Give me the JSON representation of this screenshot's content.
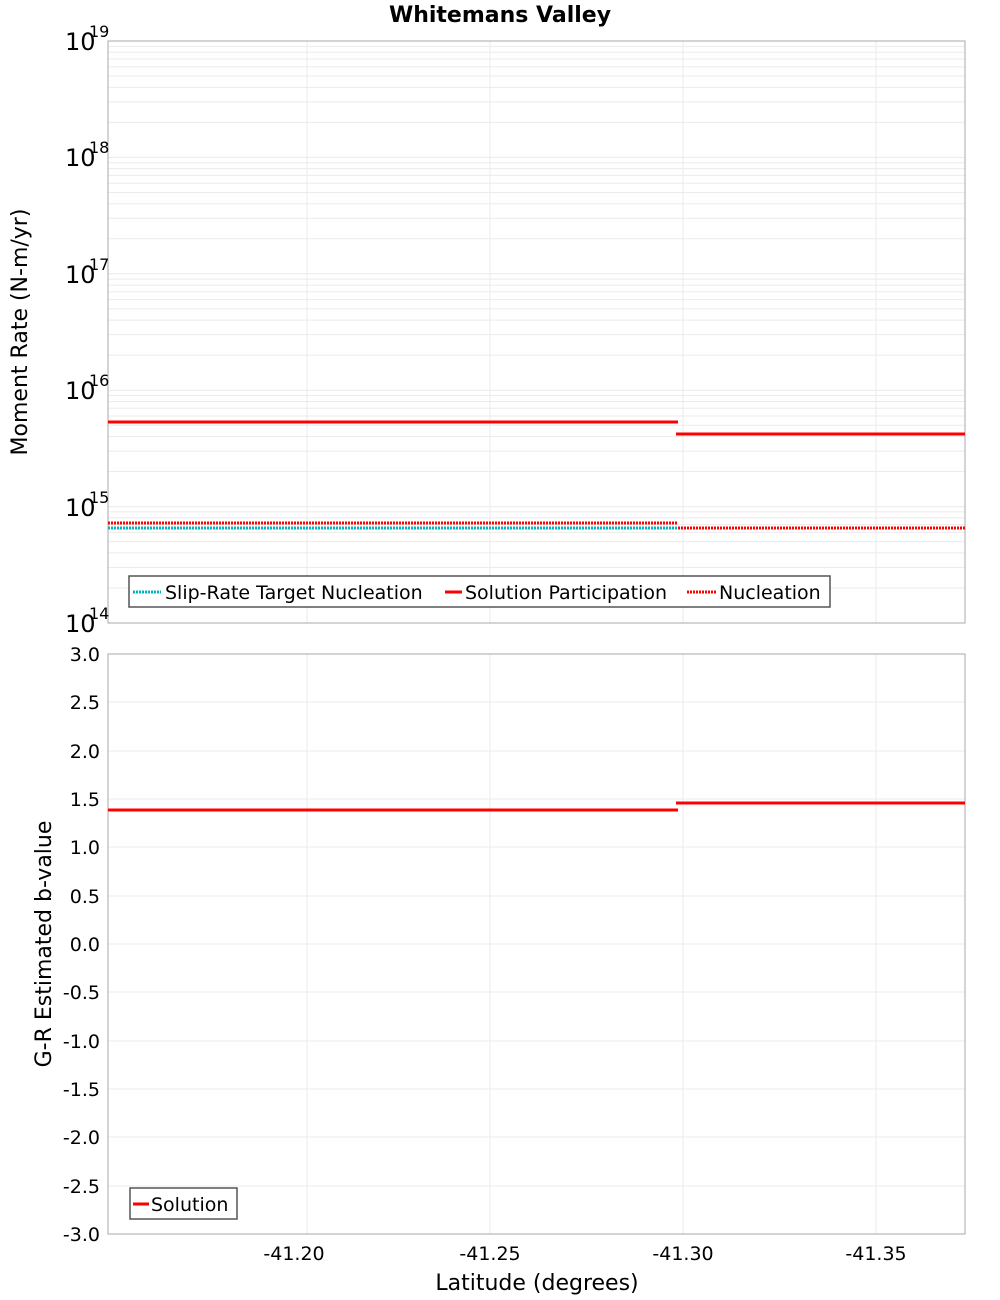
{
  "title": "Whitemans Valley",
  "top_chart": {
    "ylabel": "Moment Rate (N-m/yr)",
    "y_ticks": [
      {
        "base": "10",
        "exp": "19"
      },
      {
        "base": "10",
        "exp": "18"
      },
      {
        "base": "10",
        "exp": "17"
      },
      {
        "base": "10",
        "exp": "16"
      },
      {
        "base": "10",
        "exp": "15"
      },
      {
        "base": "10",
        "exp": "14"
      }
    ],
    "legend": [
      {
        "label": "Slip-Rate Target Nucleation",
        "color": "#00B5C0",
        "style": "dotted"
      },
      {
        "label": "Solution Participation",
        "color": "#FF0000",
        "style": "solid"
      },
      {
        "label": "Nucleation",
        "color": "#FF0000",
        "style": "dotted"
      }
    ]
  },
  "bottom_chart": {
    "ylabel": "G-R Estimated b-value",
    "y_ticks": [
      "3.0",
      "2.5",
      "2.0",
      "1.5",
      "1.0",
      "0.5",
      "0.0",
      "-0.5",
      "-1.0",
      "-1.5",
      "-2.0",
      "-2.5",
      "-3.0"
    ],
    "legend": [
      {
        "label": "Solution",
        "color": "#FF0000",
        "style": "solid"
      }
    ]
  },
  "x_axis": {
    "label": "Latitude (degrees)",
    "ticks": [
      "-41.20",
      "-41.25",
      "-41.30",
      "-41.35"
    ]
  },
  "chart_data": [
    {
      "type": "line",
      "title": "Whitemans Valley",
      "xlabel": "Latitude (degrees)",
      "ylabel": "Moment Rate (N-m/yr)",
      "yscale": "log",
      "ylim": [
        100000000000000.0,
        1e+19
      ],
      "xlim": [
        -41.148,
        -41.373
      ],
      "x_reversed": true,
      "grid": true,
      "legend_position": "lower left",
      "segments_x": [
        [
          -41.148,
          -41.223
        ],
        [
          -41.223,
          -41.299
        ],
        [
          -41.299,
          -41.373
        ]
      ],
      "series": [
        {
          "name": "Slip-Rate Target Nucleation",
          "style": "dotted",
          "color": "#00B5C0",
          "values": [
            660000000000000.0,
            660000000000000.0,
            660000000000000.0
          ]
        },
        {
          "name": "Solution Participation",
          "style": "solid",
          "color": "#FF0000",
          "values": [
            5400000000000000.0,
            5400000000000000.0,
            4200000000000000.0
          ]
        },
        {
          "name": "Nucleation",
          "style": "dotted",
          "color": "#FF0000",
          "values": [
            730000000000000.0,
            730000000000000.0,
            660000000000000.0
          ]
        }
      ]
    },
    {
      "type": "line",
      "xlabel": "Latitude (degrees)",
      "ylabel": "G-R Estimated b-value",
      "ylim": [
        -3.0,
        3.0
      ],
      "xlim": [
        -41.148,
        -41.373
      ],
      "x_reversed": true,
      "grid": true,
      "legend_position": "lower left",
      "x_ticks": [
        -41.2,
        -41.25,
        -41.3,
        -41.35
      ],
      "segments_x": [
        [
          -41.148,
          -41.223
        ],
        [
          -41.223,
          -41.299
        ],
        [
          -41.299,
          -41.373
        ]
      ],
      "series": [
        {
          "name": "Solution",
          "style": "solid",
          "color": "#FF0000",
          "values": [
            1.39,
            1.39,
            1.46
          ]
        }
      ]
    }
  ]
}
